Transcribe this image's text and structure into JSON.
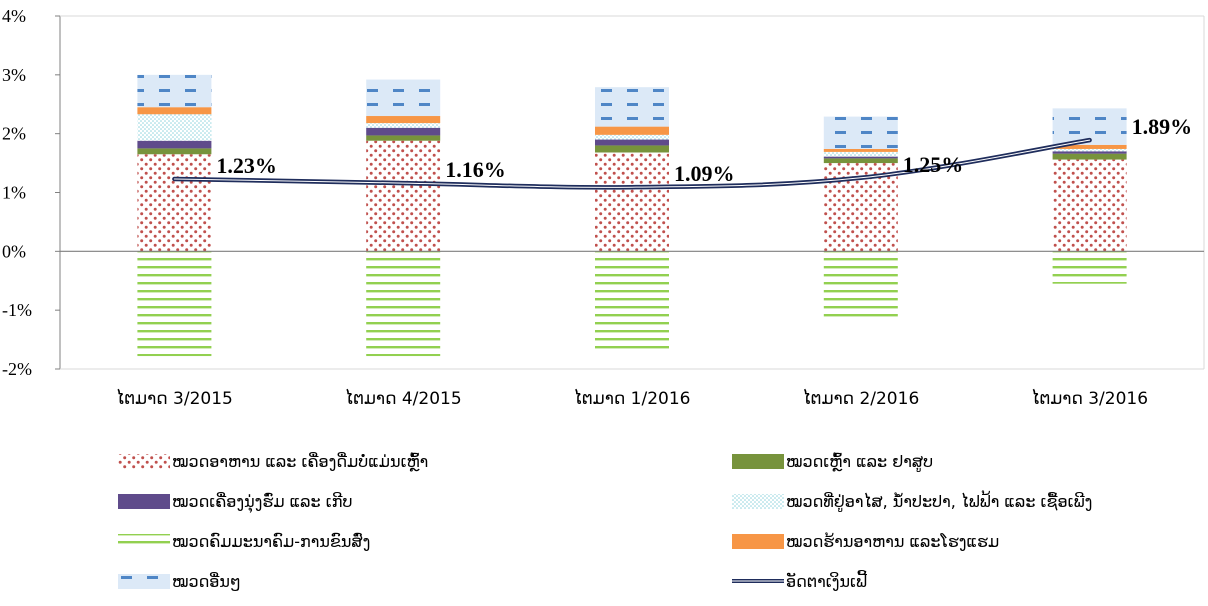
{
  "chart_data": {
    "type": "bar",
    "subtype": "stacked-with-line",
    "categories": [
      "ໄຕມາດ 3/2015",
      "ໄຕມາດ 4/2015",
      "ໄຕມາດ 1/2016",
      "ໄຕມາດ 2/2016",
      "ໄຕມາດ 3/2016"
    ],
    "ylim": [
      -2,
      4
    ],
    "yticks": [
      -2,
      -1,
      0,
      1,
      2,
      3,
      4
    ],
    "ytick_labels": [
      "-2%",
      "-1%",
      "0%",
      "1%",
      "2%",
      "3%",
      "4%"
    ],
    "grid": false,
    "legend_position": "bottom",
    "series": [
      {
        "name": "ໝວດອາຫານ ແລະ ເຄື່ອງດື່ມບໍ່ແມ່ນເຫຼົ້າ",
        "kind": "bar",
        "pattern": "dots",
        "color": "#c0504d",
        "values": [
          1.65,
          1.88,
          1.68,
          1.5,
          1.56
        ]
      },
      {
        "name": "ໝວດເຫຼົ້າ ແລະ ຢາສູບ",
        "kind": "bar",
        "pattern": "solid",
        "color": "#77933c",
        "values": [
          0.1,
          0.09,
          0.12,
          0.08,
          0.1
        ]
      },
      {
        "name": "ໝວດເຄື່ອງນຸ່ງຮົ່ມ ແລະ ເກີບ",
        "kind": "bar",
        "pattern": "solid",
        "color": "#5f4b8b",
        "values": [
          0.13,
          0.13,
          0.1,
          0.03,
          0.04
        ]
      },
      {
        "name": "ໝວດທີ່ຢູ່ອາໄສ, ນ້ຳປະປາ, ໄຟຟ້າ ແລະ ເຊື້ອເພີງ",
        "kind": "bar",
        "pattern": "dots-light",
        "color": "#8fd3de",
        "values": [
          0.45,
          0.08,
          0.08,
          0.08,
          0.04
        ]
      },
      {
        "name": "ໝວດຄົມມະນາຄົມ-ການຂົນສົ່ງ",
        "kind": "bar",
        "pattern": "hlines",
        "color": "#92d050",
        "values": [
          -1.78,
          -1.78,
          -1.68,
          -1.12,
          -0.55
        ]
      },
      {
        "name": "ໝວດຮ້ານອາຫານ ແລະໂຮງແຮມ",
        "kind": "bar",
        "pattern": "solid",
        "color": "#f79646",
        "values": [
          0.12,
          0.12,
          0.14,
          0.05,
          0.07
        ]
      },
      {
        "name": "ໝວດອື່ນໆ",
        "kind": "bar",
        "pattern": "dashes",
        "color": "#6fa8dc",
        "values": [
          0.55,
          0.62,
          0.67,
          0.55,
          0.62
        ]
      },
      {
        "name": "ອັດຕາເງິນເຟີ້",
        "kind": "line",
        "color": "#1f2d5c",
        "values": [
          1.23,
          1.16,
          1.09,
          1.25,
          1.89
        ],
        "data_labels": [
          "1.23%",
          "1.16%",
          "1.09%",
          "1.25%",
          "1.89%"
        ]
      }
    ]
  }
}
